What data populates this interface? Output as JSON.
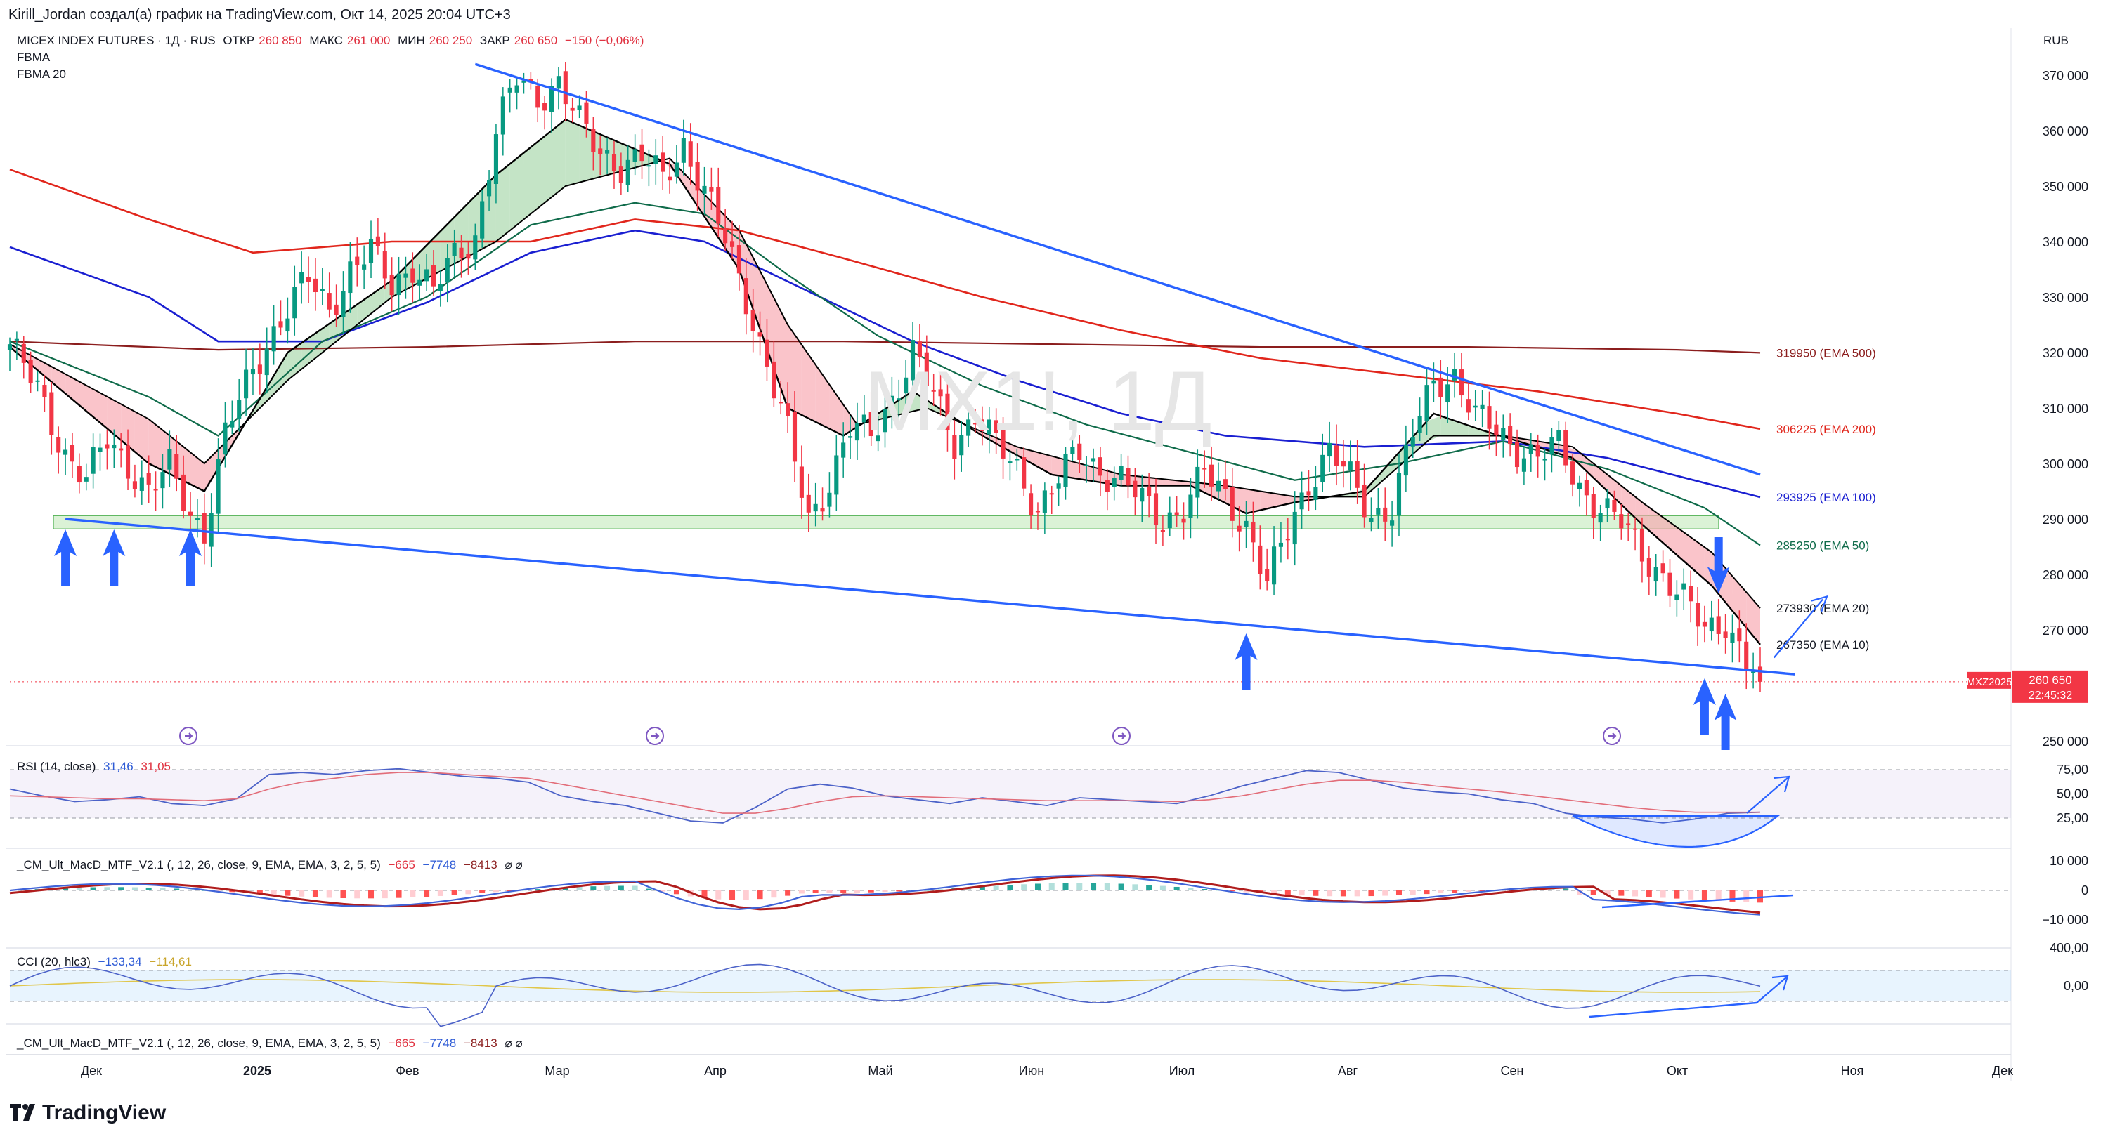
{
  "header": {
    "creator_line": "Kirill_Jordan создал(а) график на TradingView.com, Окт 14, 2025 20:04 UTC+3",
    "symbol": "MICEX INDEX FUTURES · 1Д · RUS",
    "open_label": "ОТКР",
    "open_value": "260 850",
    "high_label": "МАКС",
    "high_value": "261 000",
    "low_label": "МИН",
    "low_value": "260 250",
    "close_label": "ЗАКР",
    "close_value": "260 650",
    "change": "−150 (−0,06%)",
    "indicator_1": "FBMA",
    "indicator_2": "FBMA 20",
    "currency": "RUB"
  },
  "watermark": "MX1!, 1Д",
  "price_tag": {
    "symbol": "MXZ2025",
    "price": "260 650",
    "countdown": "22:45:32"
  },
  "footer": {
    "logo_text": "TradingView"
  },
  "colors": {
    "up": "#089981",
    "down": "#f23645",
    "trendline": "#2962ff",
    "ema10": "#000000",
    "ema20": "#000000",
    "ema50": "#0f6b4a",
    "ema100": "#1a1fd1",
    "ema200": "#e1261c",
    "ema500": "#8b1d1d",
    "support_zone": "#c8ebc0",
    "rsi": "#4c62c8",
    "rsi_ma": "#e26d79",
    "macd_fast": "#3f63d8",
    "macd_slow": "#b01c1c",
    "cci": "#4c62c8",
    "cci_ma": "#e0c64a"
  },
  "chart_data": [
    {
      "type": "candlestick",
      "symbol": "MX1!",
      "timeframe": "1Д",
      "ylim": [
        247000,
        374000
      ],
      "y_ticks": [
        "370 000",
        "360 000",
        "350 000",
        "340 000",
        "330 000",
        "320 000",
        "310 000",
        "300 000",
        "290 000",
        "280 000",
        "270 000",
        "250 000"
      ],
      "x_ticks": [
        "Дек",
        "2025",
        "Фев",
        "Мар",
        "Апр",
        "Май",
        "Июн",
        "Июл",
        "Авг",
        "Сен",
        "Окт",
        "Ноя",
        "Дек"
      ],
      "ema_labels": [
        {
          "text": "319950 (EMA 500)",
          "value": 319950
        },
        {
          "text": "306225 (EMA 200)",
          "value": 306225
        },
        {
          "text": "293925 (EMA 100)",
          "value": 293925
        },
        {
          "text": "285250 (EMA 50)",
          "value": 285250
        },
        {
          "text": "273930 (EMA 20)",
          "value": 273930
        },
        {
          "text": "267350 (EMA 10)",
          "value": 267350
        }
      ],
      "close_path": [
        [
          0,
          321500
        ],
        [
          4,
          313000
        ],
        [
          8,
          302000
        ],
        [
          11,
          297000
        ],
        [
          14,
          304000
        ],
        [
          17,
          300000
        ],
        [
          20,
          295000
        ],
        [
          23,
          299000
        ],
        [
          26,
          291000
        ],
        [
          28,
          288000
        ],
        [
          31,
          305000
        ],
        [
          34,
          314000
        ],
        [
          37,
          322000
        ],
        [
          40,
          328000
        ],
        [
          43,
          333000
        ],
        [
          46,
          328000
        ],
        [
          49,
          335000
        ],
        [
          52,
          338000
        ],
        [
          55,
          332000
        ],
        [
          58,
          336000
        ],
        [
          61,
          331000
        ],
        [
          64,
          337000
        ],
        [
          67,
          341000
        ],
        [
          70,
          360000
        ],
        [
          73,
          369000
        ],
        [
          76,
          366000
        ],
        [
          79,
          369000
        ],
        [
          82,
          361000
        ],
        [
          85,
          356000
        ],
        [
          88,
          354000
        ],
        [
          91,
          355000
        ],
        [
          94,
          351000
        ],
        [
          97,
          358000
        ],
        [
          100,
          349000
        ],
        [
          103,
          340000
        ],
        [
          106,
          330000
        ],
        [
          109,
          318000
        ],
        [
          112,
          305000
        ],
        [
          115,
          290000
        ],
        [
          118,
          297000
        ],
        [
          121,
          306000
        ],
        [
          124,
          305000
        ],
        [
          127,
          312000
        ],
        [
          130,
          320000
        ],
        [
          133,
          312000
        ],
        [
          136,
          304000
        ],
        [
          139,
          309000
        ],
        [
          142,
          303000
        ],
        [
          145,
          299000
        ],
        [
          148,
          292000
        ],
        [
          151,
          297000
        ],
        [
          154,
          302000
        ],
        [
          157,
          299000
        ],
        [
          160,
          297000
        ],
        [
          163,
          293000
        ],
        [
          166,
          290000
        ],
        [
          169,
          292000
        ],
        [
          172,
          298000
        ],
        [
          175,
          294000
        ],
        [
          178,
          289000
        ],
        [
          181,
          278000
        ],
        [
          184,
          288000
        ],
        [
          187,
          297000
        ],
        [
          190,
          302000
        ],
        [
          193,
          297000
        ],
        [
          196,
          291000
        ],
        [
          199,
          292000
        ],
        [
          202,
          305000
        ],
        [
          205,
          315000
        ],
        [
          208,
          316000
        ],
        [
          211,
          308000
        ],
        [
          214,
          306000
        ],
        [
          217,
          303000
        ],
        [
          220,
          301000
        ],
        [
          223,
          303000
        ],
        [
          226,
          296000
        ],
        [
          229,
          292000
        ],
        [
          232,
          289000
        ],
        [
          235,
          284000
        ],
        [
          238,
          280000
        ],
        [
          241,
          275000
        ],
        [
          244,
          270000
        ],
        [
          247,
          272000
        ],
        [
          250,
          264000
        ],
        [
          252,
          260650
        ]
      ],
      "overlays": {
        "ema10": [
          [
            0,
            321000
          ],
          [
            20,
            300000
          ],
          [
            28,
            295000
          ],
          [
            40,
            320000
          ],
          [
            55,
            333000
          ],
          [
            70,
            352000
          ],
          [
            80,
            362000
          ],
          [
            95,
            354000
          ],
          [
            105,
            335000
          ],
          [
            112,
            310000
          ],
          [
            120,
            305000
          ],
          [
            130,
            313000
          ],
          [
            140,
            305000
          ],
          [
            150,
            298000
          ],
          [
            160,
            296000
          ],
          [
            170,
            296000
          ],
          [
            178,
            291000
          ],
          [
            185,
            293000
          ],
          [
            195,
            295000
          ],
          [
            205,
            309000
          ],
          [
            212,
            306000
          ],
          [
            225,
            301000
          ],
          [
            235,
            289000
          ],
          [
            245,
            278000
          ],
          [
            252,
            267350
          ]
        ],
        "ema20": [
          [
            0,
            321500
          ],
          [
            20,
            308000
          ],
          [
            28,
            300000
          ],
          [
            40,
            315000
          ],
          [
            55,
            330000
          ],
          [
            70,
            340000
          ],
          [
            80,
            350000
          ],
          [
            95,
            355000
          ],
          [
            105,
            342000
          ],
          [
            112,
            325000
          ],
          [
            122,
            307000
          ],
          [
            132,
            310000
          ],
          [
            145,
            303000
          ],
          [
            160,
            298000
          ],
          [
            175,
            296000
          ],
          [
            185,
            294000
          ],
          [
            195,
            294000
          ],
          [
            205,
            305000
          ],
          [
            215,
            305000
          ],
          [
            225,
            303000
          ],
          [
            235,
            293000
          ],
          [
            245,
            284000
          ],
          [
            252,
            273930
          ]
        ],
        "ema50": [
          [
            0,
            322000
          ],
          [
            20,
            312000
          ],
          [
            30,
            305000
          ],
          [
            45,
            322000
          ],
          [
            60,
            330000
          ],
          [
            75,
            343000
          ],
          [
            90,
            347000
          ],
          [
            100,
            345000
          ],
          [
            112,
            334000
          ],
          [
            125,
            323000
          ],
          [
            140,
            314000
          ],
          [
            155,
            307000
          ],
          [
            170,
            302000
          ],
          [
            185,
            297000
          ],
          [
            200,
            300000
          ],
          [
            215,
            304000
          ],
          [
            230,
            299000
          ],
          [
            244,
            292000
          ],
          [
            252,
            285250
          ]
        ],
        "ema100": [
          [
            0,
            339000
          ],
          [
            20,
            330000
          ],
          [
            30,
            322000
          ],
          [
            45,
            322000
          ],
          [
            60,
            329000
          ],
          [
            75,
            338000
          ],
          [
            90,
            342000
          ],
          [
            100,
            340000
          ],
          [
            115,
            331000
          ],
          [
            130,
            322000
          ],
          [
            145,
            315000
          ],
          [
            160,
            309000
          ],
          [
            175,
            305000
          ],
          [
            195,
            303000
          ],
          [
            215,
            304000
          ],
          [
            230,
            301000
          ],
          [
            252,
            293925
          ]
        ],
        "ema200": [
          [
            0,
            353000
          ],
          [
            20,
            344000
          ],
          [
            35,
            338000
          ],
          [
            55,
            340000
          ],
          [
            75,
            340000
          ],
          [
            90,
            344000
          ],
          [
            105,
            342000
          ],
          [
            120,
            337000
          ],
          [
            140,
            330000
          ],
          [
            160,
            324000
          ],
          [
            180,
            319000
          ],
          [
            200,
            316000
          ],
          [
            220,
            313000
          ],
          [
            240,
            309000
          ],
          [
            252,
            306225
          ]
        ],
        "ema500": [
          [
            0,
            322000
          ],
          [
            30,
            320500
          ],
          [
            60,
            321000
          ],
          [
            90,
            322000
          ],
          [
            120,
            322000
          ],
          [
            150,
            321500
          ],
          [
            180,
            321000
          ],
          [
            210,
            321000
          ],
          [
            240,
            320500
          ],
          [
            252,
            319950
          ]
        ]
      },
      "trendlines": [
        {
          "name": "upper-trendline",
          "from": [
            67,
            372000
          ],
          "to": [
            252,
            298000
          ]
        },
        {
          "name": "lower-trendline",
          "from": [
            8,
            290000
          ],
          "to": [
            257,
            262000
          ]
        }
      ],
      "support_zone": [
        288200,
        290600
      ],
      "arrows_up": [
        8,
        15,
        26,
        178,
        244,
        247
      ],
      "arrows_down": [
        246
      ]
    },
    {
      "type": "line",
      "title": "RSI (14, close)",
      "values_label": [
        "31,46",
        "31,05"
      ],
      "y_ticks": [
        "75,00",
        "50,00",
        "25,00"
      ],
      "series": [
        {
          "name": "RSI",
          "values": [
            55,
            48,
            42,
            44,
            47,
            40,
            38,
            45,
            70,
            72,
            70,
            74,
            76,
            72,
            68,
            66,
            62,
            48,
            42,
            38,
            30,
            22,
            20,
            36,
            55,
            60,
            56,
            48,
            44,
            40,
            46,
            42,
            38,
            46,
            44,
            42,
            40,
            48,
            58,
            66,
            74,
            72,
            64,
            56,
            52,
            50,
            44,
            40,
            30,
            26,
            24,
            20,
            24,
            30,
            31
          ]
        },
        {
          "name": "RSI MA",
          "values": [
            48,
            47,
            46,
            45,
            45,
            44,
            43,
            45,
            55,
            62,
            66,
            70,
            72,
            72,
            70,
            68,
            66,
            60,
            54,
            48,
            42,
            36,
            30,
            30,
            35,
            42,
            47,
            48,
            47,
            46,
            45,
            44,
            43,
            43,
            43,
            43,
            42,
            44,
            48,
            54,
            60,
            64,
            64,
            62,
            58,
            55,
            52,
            48,
            44,
            40,
            36,
            33,
            31,
            31,
            31
          ]
        }
      ]
    },
    {
      "type": "bar",
      "title": "_CM_Ult_MacD_MTF_V2.1 (, 12, 26, close, 9, EMA, EMA, 3, 2, 5, 5)",
      "values_label": [
        "−665",
        "−7748",
        "−8413"
      ],
      "y_ticks": [
        "10 000",
        "0",
        "−10 000"
      ]
    },
    {
      "type": "line",
      "title": "CCI (20, hlc3)",
      "values_label": [
        "−133,34",
        "−114,61"
      ],
      "y_ticks": [
        "400,00",
        "0,00"
      ]
    },
    {
      "type": "line",
      "title": "_CM_Ult_MacD_MTF_V2.1 (, 12, 26, close, 9, EMA, EMA, 3, 2, 5, 5)",
      "values_label": [
        "−665",
        "−7748",
        "−8413"
      ]
    }
  ]
}
